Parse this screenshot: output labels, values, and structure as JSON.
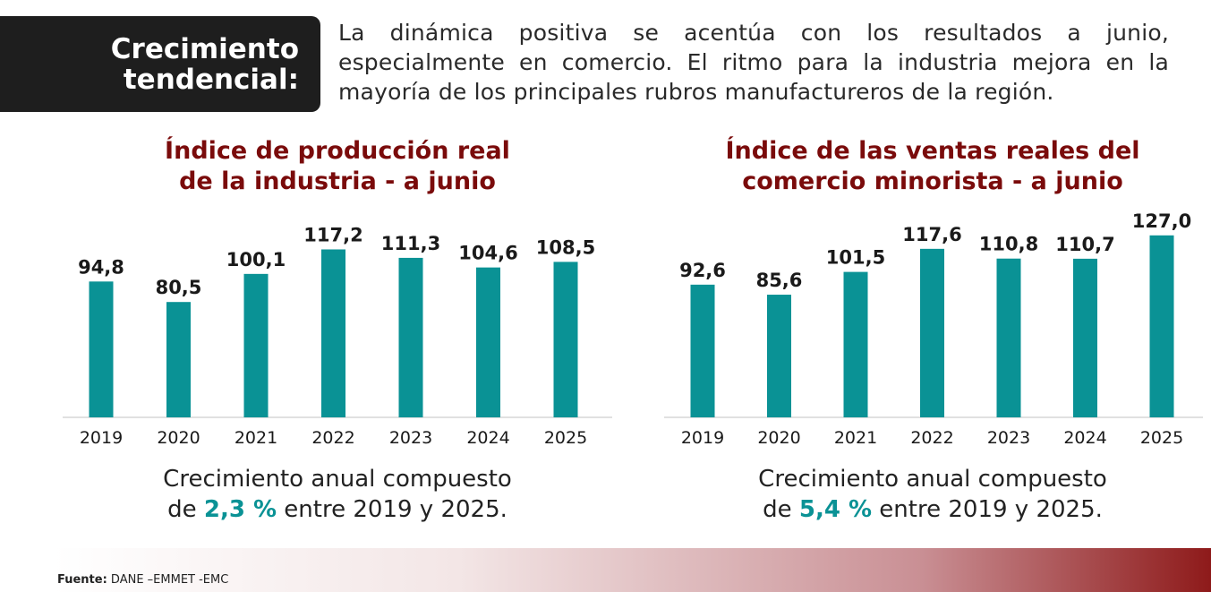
{
  "header": {
    "title_line1": "Crecimiento",
    "title_line2": "tendencial:",
    "intro": "La dinámica positiva se acentúa con los resultados a junio, especialmente en comercio. El ritmo para la industria mejora en la mayoría de los principales rubros manufactureros de la región."
  },
  "chart_data": [
    {
      "type": "bar",
      "title_line1": "Índice de producción real",
      "title_line2": "de la industria - a junio",
      "categories": [
        "2019",
        "2020",
        "2021",
        "2022",
        "2023",
        "2024",
        "2025"
      ],
      "values": [
        94.8,
        80.5,
        100.1,
        117.2,
        111.3,
        104.6,
        108.5
      ],
      "value_labels": [
        "94,8",
        "80,5",
        "100,1",
        "117,2",
        "111,3",
        "104,6",
        "108,5"
      ],
      "bar_color": "#0a9295",
      "ylim": [
        0,
        130
      ],
      "grid": false
    },
    {
      "type": "bar",
      "title_line1": "Índice de las ventas reales del",
      "title_line2": "comercio minorista - a junio",
      "categories": [
        "2019",
        "2020",
        "2021",
        "2022",
        "2023",
        "2024",
        "2025"
      ],
      "values": [
        92.6,
        85.6,
        101.5,
        117.6,
        110.8,
        110.7,
        127.0
      ],
      "value_labels": [
        "92,6",
        "85,6",
        "101,5",
        "117,6",
        "110,8",
        "110,7",
        "127,0"
      ],
      "bar_color": "#0a9295",
      "ylim": [
        0,
        130
      ],
      "grid": false
    }
  ],
  "notes": [
    {
      "line1": "Crecimiento anual compuesto",
      "prefix": "de ",
      "value": "2,3 %",
      "suffix": " entre 2019 y 2025."
    },
    {
      "line1": "Crecimiento anual compuesto",
      "prefix": "de ",
      "value": "5,4 %",
      "suffix": " entre 2019 y 2025."
    }
  ],
  "footer": {
    "source_label": "Fuente:",
    "source_text": " DANE –EMMET -EMC"
  },
  "colors": {
    "accent": "#0a9295",
    "title": "#7a0b0b",
    "header_box": "#1e1e1e"
  }
}
